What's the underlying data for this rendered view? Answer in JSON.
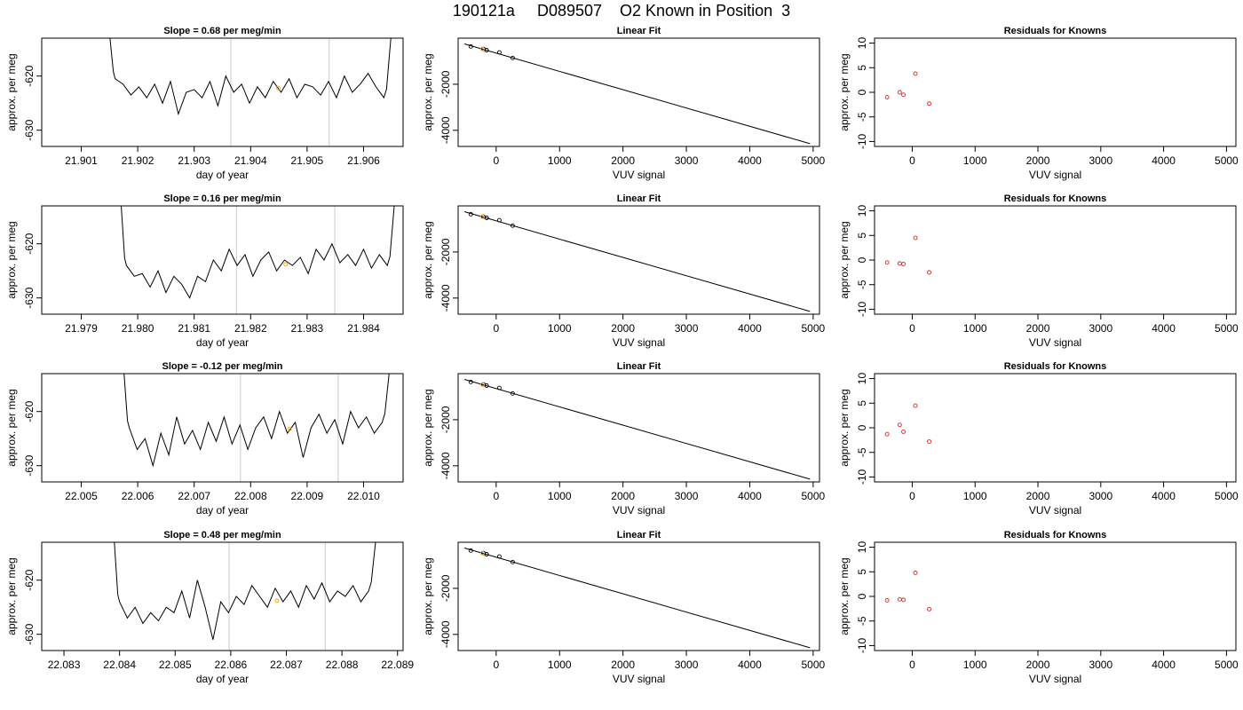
{
  "figure": {
    "title": "190121a     D089507    O2 Known in Position  3"
  },
  "chart_data": [
    {
      "type": "line",
      "panel": "timeseries",
      "row": 1,
      "title": "Slope =  0.68  per meg/min",
      "xlabel": "day of year",
      "ylabel": "approx. per meg",
      "xlim": [
        21.9003,
        21.9067
      ],
      "ylim": [
        -633,
        -613
      ],
      "xticks": [
        21.901,
        21.902,
        21.903,
        21.904,
        21.905,
        21.906
      ],
      "xtick_labels": [
        "21.901",
        "21.902",
        "21.903",
        "21.904",
        "21.905",
        "21.906"
      ],
      "yticks": [
        -620,
        -630
      ],
      "ytick_labels": [
        "-620",
        "-630"
      ],
      "vlines": [
        21.90365,
        21.90539
      ],
      "series": [
        {
          "x": [
            21.9016,
            21.90174,
            21.90188,
            21.90202,
            21.90216,
            21.9023,
            21.90244,
            21.90258,
            21.90272,
            21.90286,
            21.903,
            21.90314,
            21.90328,
            21.90342,
            21.90356,
            21.9037,
            21.90384,
            21.90398,
            21.90412,
            21.90426,
            21.9044,
            21.90454,
            21.90468,
            21.90482,
            21.90496,
            21.9051,
            21.90524,
            21.90538,
            21.90552,
            21.90566,
            21.9058,
            21.90594,
            21.90608,
            21.90622,
            21.90636
          ],
          "y": [
            -620.5,
            -621.5,
            -623.5,
            -622,
            -624,
            -621.5,
            -625,
            -621,
            -627,
            -623,
            -622.5,
            -624,
            -621,
            -625.5,
            -620,
            -623,
            -621.5,
            -625,
            -622,
            -624,
            -621,
            -623,
            -620.5,
            -624,
            -621.5,
            -622,
            -623.5,
            -621,
            -624,
            -620,
            -623,
            -621.5,
            -619.5,
            -622,
            -624
          ]
        }
      ],
      "points": [
        {
          "x": 21.90449,
          "y": -622.2,
          "color": "#ffa500"
        }
      ]
    },
    {
      "type": "scatter",
      "panel": "linear-fit",
      "row": 1,
      "title": "Linear Fit",
      "xlabel": "VUV signal",
      "ylabel": "approx. per meg",
      "xlim": [
        -600,
        5100
      ],
      "ylim": [
        -4700,
        0
      ],
      "xticks": [
        0,
        1000,
        2000,
        3000,
        4000,
        5000
      ],
      "xtick_labels": [
        "0",
        "1000",
        "2000",
        "3000",
        "4000",
        "5000"
      ],
      "yticks": [
        -2000,
        -4000
      ],
      "ytick_labels": [
        "-2000",
        "-4000"
      ],
      "fit_line": {
        "x": [
          -500,
          4950
        ],
        "y": [
          -250,
          -4580
        ]
      },
      "series": [
        {
          "x": [
            -400,
            -200,
            -150,
            50,
            260
          ],
          "y": [
            -360,
            -470,
            -520,
            -620,
            -860
          ]
        }
      ],
      "points": [
        {
          "x": -215,
          "y": -470,
          "color": "#ffa500"
        }
      ]
    },
    {
      "type": "scatter",
      "panel": "residuals",
      "row": 1,
      "title": "Residuals for Knowns",
      "xlabel": "VUV signal",
      "ylabel": "approx. per meg",
      "xlim": [
        -600,
        5150
      ],
      "ylim": [
        -11,
        11
      ],
      "xticks": [
        0,
        1000,
        2000,
        3000,
        4000,
        5000
      ],
      "xtick_labels": [
        "0",
        "1000",
        "2000",
        "3000",
        "4000",
        "5000"
      ],
      "yticks": [
        10,
        5,
        0,
        -5,
        -10
      ],
      "ytick_labels": [
        "10",
        "5",
        "0",
        "-5",
        "-10"
      ],
      "series": [
        {
          "x": [
            -400,
            -200,
            -140,
            50,
            270
          ],
          "y": [
            -1,
            0,
            -0.5,
            3.8,
            -2.3
          ]
        }
      ]
    },
    {
      "type": "line",
      "panel": "timeseries",
      "row": 2,
      "title": "Slope =  0.16  per meg/min",
      "xlabel": "day of year",
      "ylabel": "approx. per meg",
      "xlim": [
        21.9783,
        21.9847
      ],
      "ylim": [
        -633,
        -613
      ],
      "xticks": [
        21.979,
        21.98,
        21.981,
        21.982,
        21.983,
        21.984
      ],
      "xtick_labels": [
        "21.979",
        "21.980",
        "21.981",
        "21.982",
        "21.983",
        "21.984"
      ],
      "yticks": [
        -620,
        -630
      ],
      "ytick_labels": [
        "-620",
        "-630"
      ],
      "vlines": [
        21.98175,
        21.98349
      ],
      "series": [
        {
          "x": [
            21.9798,
            21.97994,
            21.98008,
            21.98022,
            21.98036,
            21.9805,
            21.98064,
            21.98078,
            21.98092,
            21.98106,
            21.9812,
            21.98134,
            21.98148,
            21.98162,
            21.98176,
            21.9819,
            21.98204,
            21.98218,
            21.98232,
            21.98246,
            21.9826,
            21.98274,
            21.98288,
            21.98302,
            21.98316,
            21.9833,
            21.98344,
            21.98358,
            21.98372,
            21.98386,
            21.984,
            21.98414,
            21.98428,
            21.98442
          ],
          "y": [
            -624,
            -626,
            -625.5,
            -628,
            -625,
            -629,
            -626,
            -627.5,
            -630,
            -626,
            -627,
            -623,
            -625,
            -621,
            -624,
            -622,
            -626,
            -623,
            -621.5,
            -625,
            -623,
            -624,
            -622.5,
            -625.5,
            -621,
            -623,
            -620,
            -623.5,
            -622,
            -624,
            -621,
            -624.5,
            -622,
            -624
          ]
        }
      ],
      "points": [
        {
          "x": 21.98262,
          "y": -623.8,
          "color": "#ffa500"
        }
      ]
    },
    {
      "type": "scatter",
      "panel": "linear-fit",
      "row": 2,
      "title": "Linear Fit",
      "xlabel": "VUV signal",
      "ylabel": "approx. per meg",
      "xlim": [
        -600,
        5100
      ],
      "ylim": [
        -4700,
        0
      ],
      "xticks": [
        0,
        1000,
        2000,
        3000,
        4000,
        5000
      ],
      "xtick_labels": [
        "0",
        "1000",
        "2000",
        "3000",
        "4000",
        "5000"
      ],
      "yticks": [
        -2000,
        -4000
      ],
      "ytick_labels": [
        "-2000",
        "-4000"
      ],
      "fit_line": {
        "x": [
          -500,
          4950
        ],
        "y": [
          -250,
          -4580
        ]
      },
      "series": [
        {
          "x": [
            -400,
            -200,
            -150,
            50,
            260
          ],
          "y": [
            -360,
            -470,
            -520,
            -620,
            -860
          ]
        }
      ],
      "points": [
        {
          "x": -215,
          "y": -470,
          "color": "#ffa500"
        }
      ]
    },
    {
      "type": "scatter",
      "panel": "residuals",
      "row": 2,
      "title": "Residuals for Knowns",
      "xlabel": "VUV signal",
      "ylabel": "approx. per meg",
      "xlim": [
        -600,
        5150
      ],
      "ylim": [
        -11,
        11
      ],
      "xticks": [
        0,
        1000,
        2000,
        3000,
        4000,
        5000
      ],
      "xtick_labels": [
        "0",
        "1000",
        "2000",
        "3000",
        "4000",
        "5000"
      ],
      "yticks": [
        10,
        5,
        0,
        -5,
        -10
      ],
      "ytick_labels": [
        "10",
        "5",
        "0",
        "-5",
        "-10"
      ],
      "series": [
        {
          "x": [
            -400,
            -200,
            -140,
            50,
            270
          ],
          "y": [
            -0.5,
            -0.7,
            -0.8,
            4.5,
            -2.5
          ]
        }
      ]
    },
    {
      "type": "line",
      "panel": "timeseries",
      "row": 3,
      "title": "Slope =  -0.12  per meg/min",
      "xlabel": "day of year",
      "ylabel": "approx. per meg",
      "xlim": [
        22.0043,
        22.0107
      ],
      "ylim": [
        -633,
        -613
      ],
      "xticks": [
        22.005,
        22.006,
        22.007,
        22.008,
        22.009,
        22.01
      ],
      "xtick_labels": [
        "22.005",
        "22.006",
        "22.007",
        "22.008",
        "22.009",
        "22.010"
      ],
      "yticks": [
        -620,
        -630
      ],
      "ytick_labels": [
        "-620",
        "-630"
      ],
      "vlines": [
        22.00782,
        22.00955
      ],
      "series": [
        {
          "x": [
            22.00585,
            22.00599,
            22.00613,
            22.00627,
            22.00641,
            22.00655,
            22.00669,
            22.00683,
            22.00697,
            22.00711,
            22.00725,
            22.00739,
            22.00753,
            22.00767,
            22.00781,
            22.00795,
            22.00809,
            22.00823,
            22.00837,
            22.00851,
            22.00865,
            22.00879,
            22.00893,
            22.00907,
            22.00921,
            22.00935,
            22.00949,
            22.00963,
            22.00977,
            22.00991,
            22.01005,
            22.01019,
            22.01033
          ],
          "y": [
            -623,
            -627,
            -625,
            -630,
            -624,
            -628,
            -621,
            -626,
            -623.5,
            -627,
            -622,
            -625.5,
            -621,
            -626,
            -622.5,
            -627,
            -623,
            -621,
            -625,
            -620,
            -624,
            -622,
            -628.5,
            -623,
            -620.5,
            -624,
            -621.5,
            -626,
            -620,
            -623,
            -621,
            -624,
            -622
          ]
        }
      ],
      "points": [
        {
          "x": 22.00869,
          "y": -623.2,
          "color": "#ffa500"
        }
      ]
    },
    {
      "type": "scatter",
      "panel": "linear-fit",
      "row": 3,
      "title": "Linear Fit",
      "xlabel": "VUV signal",
      "ylabel": "approx. per meg",
      "xlim": [
        -600,
        5100
      ],
      "ylim": [
        -4700,
        0
      ],
      "xticks": [
        0,
        1000,
        2000,
        3000,
        4000,
        5000
      ],
      "xtick_labels": [
        "0",
        "1000",
        "2000",
        "3000",
        "4000",
        "5000"
      ],
      "yticks": [
        -2000,
        -4000
      ],
      "ytick_labels": [
        "-2000",
        "-4000"
      ],
      "fit_line": {
        "x": [
          -500,
          4950
        ],
        "y": [
          -250,
          -4580
        ]
      },
      "series": [
        {
          "x": [
            -400,
            -200,
            -150,
            50,
            260
          ],
          "y": [
            -360,
            -470,
            -520,
            -620,
            -860
          ]
        }
      ],
      "points": [
        {
          "x": -215,
          "y": -470,
          "color": "#ffa500"
        }
      ]
    },
    {
      "type": "scatter",
      "panel": "residuals",
      "row": 3,
      "title": "Residuals for Knowns",
      "xlabel": "VUV signal",
      "ylabel": "approx. per meg",
      "xlim": [
        -600,
        5150
      ],
      "ylim": [
        -11,
        11
      ],
      "xticks": [
        0,
        1000,
        2000,
        3000,
        4000,
        5000
      ],
      "xtick_labels": [
        "0",
        "1000",
        "2000",
        "3000",
        "4000",
        "5000"
      ],
      "yticks": [
        10,
        5,
        0,
        -5,
        -10
      ],
      "ytick_labels": [
        "10",
        "5",
        "0",
        "-5",
        "-10"
      ],
      "series": [
        {
          "x": [
            -400,
            -200,
            -140,
            50,
            270
          ],
          "y": [
            -1.3,
            0.6,
            -0.8,
            4.5,
            -2.8
          ]
        }
      ]
    },
    {
      "type": "line",
      "panel": "timeseries",
      "row": 4,
      "title": "Slope =  0.48  per meg/min",
      "xlabel": "day of year",
      "ylabel": "approx. per meg",
      "xlim": [
        22.0826,
        22.0891
      ],
      "ylim": [
        -633,
        -613
      ],
      "xticks": [
        22.083,
        22.084,
        22.085,
        22.086,
        22.087,
        22.088,
        22.089
      ],
      "xtick_labels": [
        "22.083",
        "22.084",
        "22.085",
        "22.086",
        "22.087",
        "22.088",
        "22.089"
      ],
      "yticks": [
        -620,
        -630
      ],
      "ytick_labels": [
        "-620",
        "-630"
      ],
      "vlines": [
        22.08597,
        22.0877
      ],
      "series": [
        {
          "x": [
            22.084,
            22.08414,
            22.08428,
            22.08442,
            22.08456,
            22.0847,
            22.08484,
            22.08498,
            22.08512,
            22.08526,
            22.0854,
            22.08554,
            22.08568,
            22.08582,
            22.08596,
            22.0861,
            22.08624,
            22.08638,
            22.08652,
            22.08666,
            22.0868,
            22.08694,
            22.08708,
            22.08722,
            22.08736,
            22.0875,
            22.08764,
            22.08778,
            22.08792,
            22.08806,
            22.0882,
            22.08834,
            22.08848
          ],
          "y": [
            -624,
            -627,
            -625,
            -628,
            -626,
            -627.5,
            -625,
            -626,
            -622,
            -627,
            -620,
            -625,
            -631,
            -624,
            -626,
            -623,
            -624.5,
            -621,
            -623,
            -625,
            -621.5,
            -624,
            -622,
            -625,
            -621,
            -623.5,
            -620.5,
            -624,
            -622,
            -623,
            -621,
            -624,
            -622
          ]
        }
      ],
      "points": [
        {
          "x": 22.08683,
          "y": -623.8,
          "color": "#ffa500"
        }
      ]
    },
    {
      "type": "scatter",
      "panel": "linear-fit",
      "row": 4,
      "title": "Linear Fit",
      "xlabel": "VUV signal",
      "ylabel": "approx. per meg",
      "xlim": [
        -600,
        5100
      ],
      "ylim": [
        -4700,
        0
      ],
      "xticks": [
        0,
        1000,
        2000,
        3000,
        4000,
        5000
      ],
      "xtick_labels": [
        "0",
        "1000",
        "2000",
        "3000",
        "4000",
        "5000"
      ],
      "yticks": [
        -2000,
        -4000
      ],
      "ytick_labels": [
        "-2000",
        "-4000"
      ],
      "fit_line": {
        "x": [
          -500,
          4950
        ],
        "y": [
          -250,
          -4580
        ]
      },
      "series": [
        {
          "x": [
            -400,
            -200,
            -150,
            50,
            260
          ],
          "y": [
            -360,
            -470,
            -520,
            -620,
            -860
          ]
        }
      ],
      "points": [
        {
          "x": -215,
          "y": -470,
          "color": "#ffa500"
        }
      ]
    },
    {
      "type": "scatter",
      "panel": "residuals",
      "row": 4,
      "title": "Residuals for Knowns",
      "xlabel": "VUV signal",
      "ylabel": "approx. per meg",
      "xlim": [
        -600,
        5150
      ],
      "ylim": [
        -11,
        11
      ],
      "xticks": [
        0,
        1000,
        2000,
        3000,
        4000,
        5000
      ],
      "xtick_labels": [
        "0",
        "1000",
        "2000",
        "3000",
        "4000",
        "5000"
      ],
      "yticks": [
        10,
        5,
        0,
        -5,
        -10
      ],
      "ytick_labels": [
        "10",
        "5",
        "0",
        "-5",
        "-10"
      ],
      "series": [
        {
          "x": [
            -400,
            -200,
            -140,
            50,
            270
          ],
          "y": [
            -0.8,
            -0.6,
            -0.7,
            4.8,
            -2.6
          ]
        }
      ]
    }
  ]
}
